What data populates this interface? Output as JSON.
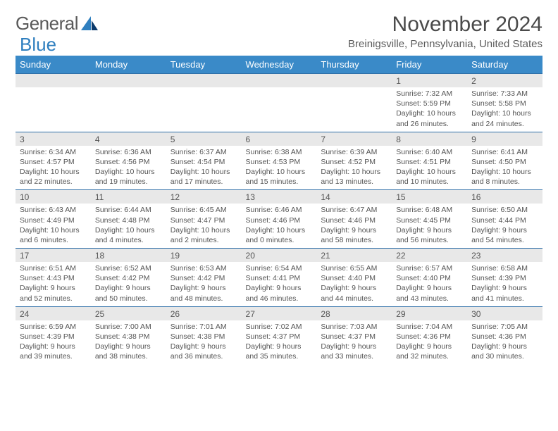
{
  "brand": {
    "word1": "General",
    "word2": "Blue"
  },
  "title": "November 2024",
  "location": "Breinigsville, Pennsylvania, United States",
  "colors": {
    "header_bg": "#3a8ac8",
    "header_text": "#ffffff",
    "daynum_bg": "#e8e8e8",
    "daynum_border": "#2f6fa8",
    "body_text": "#555555",
    "brand_gray": "#5a5a5a",
    "brand_blue": "#2f7fbf"
  },
  "dow": [
    "Sunday",
    "Monday",
    "Tuesday",
    "Wednesday",
    "Thursday",
    "Friday",
    "Saturday"
  ],
  "weeks": [
    [
      {
        "n": "",
        "sr": "",
        "ss": "",
        "d1": "",
        "d2": ""
      },
      {
        "n": "",
        "sr": "",
        "ss": "",
        "d1": "",
        "d2": ""
      },
      {
        "n": "",
        "sr": "",
        "ss": "",
        "d1": "",
        "d2": ""
      },
      {
        "n": "",
        "sr": "",
        "ss": "",
        "d1": "",
        "d2": ""
      },
      {
        "n": "",
        "sr": "",
        "ss": "",
        "d1": "",
        "d2": ""
      },
      {
        "n": "1",
        "sr": "Sunrise: 7:32 AM",
        "ss": "Sunset: 5:59 PM",
        "d1": "Daylight: 10 hours",
        "d2": "and 26 minutes."
      },
      {
        "n": "2",
        "sr": "Sunrise: 7:33 AM",
        "ss": "Sunset: 5:58 PM",
        "d1": "Daylight: 10 hours",
        "d2": "and 24 minutes."
      }
    ],
    [
      {
        "n": "3",
        "sr": "Sunrise: 6:34 AM",
        "ss": "Sunset: 4:57 PM",
        "d1": "Daylight: 10 hours",
        "d2": "and 22 minutes."
      },
      {
        "n": "4",
        "sr": "Sunrise: 6:36 AM",
        "ss": "Sunset: 4:56 PM",
        "d1": "Daylight: 10 hours",
        "d2": "and 19 minutes."
      },
      {
        "n": "5",
        "sr": "Sunrise: 6:37 AM",
        "ss": "Sunset: 4:54 PM",
        "d1": "Daylight: 10 hours",
        "d2": "and 17 minutes."
      },
      {
        "n": "6",
        "sr": "Sunrise: 6:38 AM",
        "ss": "Sunset: 4:53 PM",
        "d1": "Daylight: 10 hours",
        "d2": "and 15 minutes."
      },
      {
        "n": "7",
        "sr": "Sunrise: 6:39 AM",
        "ss": "Sunset: 4:52 PM",
        "d1": "Daylight: 10 hours",
        "d2": "and 13 minutes."
      },
      {
        "n": "8",
        "sr": "Sunrise: 6:40 AM",
        "ss": "Sunset: 4:51 PM",
        "d1": "Daylight: 10 hours",
        "d2": "and 10 minutes."
      },
      {
        "n": "9",
        "sr": "Sunrise: 6:41 AM",
        "ss": "Sunset: 4:50 PM",
        "d1": "Daylight: 10 hours",
        "d2": "and 8 minutes."
      }
    ],
    [
      {
        "n": "10",
        "sr": "Sunrise: 6:43 AM",
        "ss": "Sunset: 4:49 PM",
        "d1": "Daylight: 10 hours",
        "d2": "and 6 minutes."
      },
      {
        "n": "11",
        "sr": "Sunrise: 6:44 AM",
        "ss": "Sunset: 4:48 PM",
        "d1": "Daylight: 10 hours",
        "d2": "and 4 minutes."
      },
      {
        "n": "12",
        "sr": "Sunrise: 6:45 AM",
        "ss": "Sunset: 4:47 PM",
        "d1": "Daylight: 10 hours",
        "d2": "and 2 minutes."
      },
      {
        "n": "13",
        "sr": "Sunrise: 6:46 AM",
        "ss": "Sunset: 4:46 PM",
        "d1": "Daylight: 10 hours",
        "d2": "and 0 minutes."
      },
      {
        "n": "14",
        "sr": "Sunrise: 6:47 AM",
        "ss": "Sunset: 4:46 PM",
        "d1": "Daylight: 9 hours",
        "d2": "and 58 minutes."
      },
      {
        "n": "15",
        "sr": "Sunrise: 6:48 AM",
        "ss": "Sunset: 4:45 PM",
        "d1": "Daylight: 9 hours",
        "d2": "and 56 minutes."
      },
      {
        "n": "16",
        "sr": "Sunrise: 6:50 AM",
        "ss": "Sunset: 4:44 PM",
        "d1": "Daylight: 9 hours",
        "d2": "and 54 minutes."
      }
    ],
    [
      {
        "n": "17",
        "sr": "Sunrise: 6:51 AM",
        "ss": "Sunset: 4:43 PM",
        "d1": "Daylight: 9 hours",
        "d2": "and 52 minutes."
      },
      {
        "n": "18",
        "sr": "Sunrise: 6:52 AM",
        "ss": "Sunset: 4:42 PM",
        "d1": "Daylight: 9 hours",
        "d2": "and 50 minutes."
      },
      {
        "n": "19",
        "sr": "Sunrise: 6:53 AM",
        "ss": "Sunset: 4:42 PM",
        "d1": "Daylight: 9 hours",
        "d2": "and 48 minutes."
      },
      {
        "n": "20",
        "sr": "Sunrise: 6:54 AM",
        "ss": "Sunset: 4:41 PM",
        "d1": "Daylight: 9 hours",
        "d2": "and 46 minutes."
      },
      {
        "n": "21",
        "sr": "Sunrise: 6:55 AM",
        "ss": "Sunset: 4:40 PM",
        "d1": "Daylight: 9 hours",
        "d2": "and 44 minutes."
      },
      {
        "n": "22",
        "sr": "Sunrise: 6:57 AM",
        "ss": "Sunset: 4:40 PM",
        "d1": "Daylight: 9 hours",
        "d2": "and 43 minutes."
      },
      {
        "n": "23",
        "sr": "Sunrise: 6:58 AM",
        "ss": "Sunset: 4:39 PM",
        "d1": "Daylight: 9 hours",
        "d2": "and 41 minutes."
      }
    ],
    [
      {
        "n": "24",
        "sr": "Sunrise: 6:59 AM",
        "ss": "Sunset: 4:39 PM",
        "d1": "Daylight: 9 hours",
        "d2": "and 39 minutes."
      },
      {
        "n": "25",
        "sr": "Sunrise: 7:00 AM",
        "ss": "Sunset: 4:38 PM",
        "d1": "Daylight: 9 hours",
        "d2": "and 38 minutes."
      },
      {
        "n": "26",
        "sr": "Sunrise: 7:01 AM",
        "ss": "Sunset: 4:38 PM",
        "d1": "Daylight: 9 hours",
        "d2": "and 36 minutes."
      },
      {
        "n": "27",
        "sr": "Sunrise: 7:02 AM",
        "ss": "Sunset: 4:37 PM",
        "d1": "Daylight: 9 hours",
        "d2": "and 35 minutes."
      },
      {
        "n": "28",
        "sr": "Sunrise: 7:03 AM",
        "ss": "Sunset: 4:37 PM",
        "d1": "Daylight: 9 hours",
        "d2": "and 33 minutes."
      },
      {
        "n": "29",
        "sr": "Sunrise: 7:04 AM",
        "ss": "Sunset: 4:36 PM",
        "d1": "Daylight: 9 hours",
        "d2": "and 32 minutes."
      },
      {
        "n": "30",
        "sr": "Sunrise: 7:05 AM",
        "ss": "Sunset: 4:36 PM",
        "d1": "Daylight: 9 hours",
        "d2": "and 30 minutes."
      }
    ]
  ]
}
